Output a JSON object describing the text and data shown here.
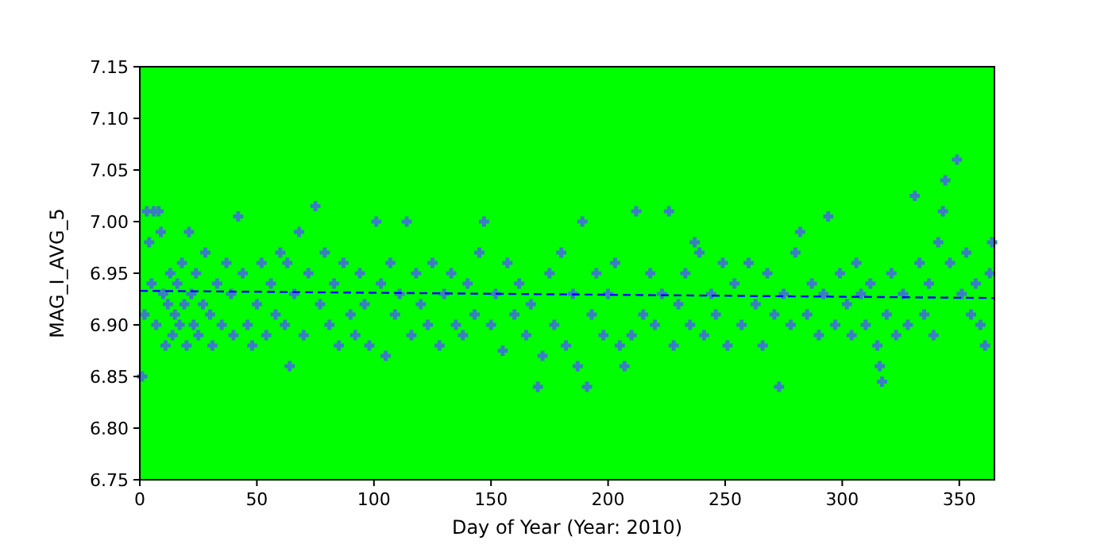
{
  "chart_data": {
    "type": "scatter",
    "xlabel": "Day of Year (Year: 2010)",
    "ylabel": "MAG_I_AVG_5",
    "xlim": [
      0,
      365
    ],
    "ylim": [
      6.75,
      7.15
    ],
    "xticks": [
      0,
      50,
      100,
      150,
      200,
      250,
      300,
      350
    ],
    "yticks": [
      6.75,
      {
        "value": 6.8,
        "label": "6.80"
      },
      6.85,
      {
        "value": 6.9,
        "label": "6.90"
      },
      6.95,
      {
        "value": 7.0,
        "label": "7.00"
      },
      7.05,
      {
        "value": 7.1,
        "label": "7.10"
      },
      7.15
    ],
    "grid": false,
    "marker": "cross",
    "series": [
      {
        "color": "#3b7dc4",
        "x": [
          1,
          2,
          3,
          4,
          5,
          6,
          7,
          8,
          9,
          10,
          11,
          12,
          13,
          14,
          15,
          16,
          17,
          18,
          19,
          20,
          21,
          22,
          23,
          24,
          25,
          27,
          28,
          30,
          31,
          33,
          35,
          37,
          39,
          40,
          42,
          44,
          46,
          48,
          50,
          52,
          54,
          56,
          58,
          60,
          62,
          63,
          64,
          66,
          68,
          70,
          72,
          75,
          77,
          79,
          81,
          83,
          85,
          87,
          90,
          92,
          94,
          96,
          98,
          101,
          103,
          105,
          107,
          109,
          111,
          114,
          116,
          118,
          120,
          123,
          125,
          128,
          130,
          133,
          135,
          138,
          140,
          143,
          145,
          147,
          150,
          152,
          155,
          157,
          160,
          162,
          165,
          167,
          170,
          172,
          175,
          177,
          180,
          182,
          185,
          187,
          189,
          191,
          193,
          195,
          198,
          200,
          203,
          205,
          207,
          210,
          212,
          215,
          218,
          220,
          223,
          226,
          228,
          230,
          233,
          235,
          237,
          239,
          241,
          244,
          246,
          249,
          251,
          254,
          257,
          260,
          263,
          266,
          268,
          271,
          273,
          275,
          278,
          280,
          282,
          285,
          287,
          290,
          292,
          294,
          297,
          299,
          302,
          304,
          306,
          308,
          310,
          312,
          315,
          316,
          317,
          319,
          321,
          323,
          326,
          328,
          331,
          333,
          335,
          337,
          339,
          341,
          343,
          344,
          346,
          349,
          351,
          353,
          355,
          357,
          359,
          361,
          363,
          364
        ],
        "values": [
          6.85,
          6.91,
          7.01,
          6.98,
          6.94,
          7.01,
          6.9,
          7.01,
          6.99,
          6.93,
          6.88,
          6.92,
          6.95,
          6.89,
          6.91,
          6.94,
          6.9,
          6.96,
          6.92,
          6.88,
          6.99,
          6.93,
          6.9,
          6.95,
          6.89,
          6.92,
          6.97,
          6.91,
          6.88,
          6.94,
          6.9,
          6.96,
          6.93,
          6.89,
          7.005,
          6.95,
          6.9,
          6.88,
          6.92,
          6.96,
          6.89,
          6.94,
          6.91,
          6.97,
          6.9,
          6.96,
          6.86,
          6.93,
          6.99,
          6.89,
          6.95,
          7.015,
          6.92,
          6.97,
          6.9,
          6.94,
          6.88,
          6.96,
          6.91,
          6.89,
          6.95,
          6.92,
          6.88,
          7.0,
          6.94,
          6.87,
          6.96,
          6.91,
          6.93,
          7.0,
          6.89,
          6.95,
          6.92,
          6.9,
          6.96,
          6.88,
          6.93,
          6.95,
          6.9,
          6.89,
          6.94,
          6.91,
          6.97,
          7.0,
          6.9,
          6.93,
          6.875,
          6.96,
          6.91,
          6.94,
          6.89,
          6.92,
          6.84,
          6.87,
          6.95,
          6.9,
          6.97,
          6.88,
          6.93,
          6.86,
          7.0,
          6.84,
          6.91,
          6.95,
          6.89,
          6.93,
          6.96,
          6.88,
          6.86,
          6.89,
          7.01,
          6.91,
          6.95,
          6.9,
          6.93,
          7.01,
          6.88,
          6.92,
          6.95,
          6.9,
          6.98,
          6.97,
          6.89,
          6.93,
          6.91,
          6.96,
          6.88,
          6.94,
          6.9,
          6.96,
          6.92,
          6.88,
          6.95,
          6.91,
          6.84,
          6.93,
          6.9,
          6.97,
          6.99,
          6.91,
          6.94,
          6.89,
          6.93,
          7.005,
          6.9,
          6.95,
          6.92,
          6.89,
          6.96,
          6.93,
          6.9,
          6.94,
          6.88,
          6.86,
          6.845,
          6.91,
          6.95,
          6.89,
          6.93,
          6.9,
          7.025,
          6.96,
          6.91,
          6.94,
          6.89,
          6.98,
          7.01,
          7.04,
          6.96,
          7.06,
          6.93,
          6.97,
          6.91,
          6.94,
          6.9,
          6.88,
          6.95,
          6.98
        ]
      },
      {
        "type": "line",
        "color": "#0000ff",
        "line_style": "dashed",
        "marker": "none",
        "x": [
          0,
          365
        ],
        "values": [
          6.933,
          6.926
        ]
      }
    ]
  }
}
